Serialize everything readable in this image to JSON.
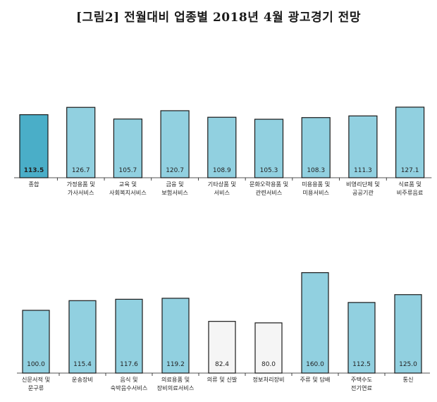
{
  "title": "[그림2] 전월대비 업종별 2018년 4월 광고경기 전망",
  "colors": {
    "highlight": "#4AAEC8",
    "bar": "#91D0E0",
    "low": "#F5F5F5",
    "border": "#1a1a1a"
  },
  "chart_data": [
    {
      "type": "bar",
      "categories": [
        [
          "종합"
        ],
        [
          "가정용품 및",
          "가사서비스"
        ],
        [
          "교육 및",
          "사회복지서비스"
        ],
        [
          "금융 및",
          "보험서비스"
        ],
        [
          "기타상품 및",
          "서비스"
        ],
        [
          "문화오락용품 및",
          "관련서비스"
        ],
        [
          "미용용품 및",
          "미용서비스"
        ],
        [
          "비영리단체 및",
          "공공기관"
        ],
        [
          "식료품 및",
          "비주류음료"
        ]
      ],
      "values": [
        113.5,
        126.7,
        105.7,
        120.7,
        108.9,
        105.3,
        108.3,
        111.3,
        127.1
      ],
      "value_labels": [
        "113.5",
        "126.7",
        "105.7",
        "120.7",
        "108.9",
        "105.3",
        "108.3",
        "111.3",
        "127.1"
      ],
      "ylim": [
        0,
        160
      ],
      "highlight_index": 0
    },
    {
      "type": "bar",
      "categories": [
        [
          "신문서적 및",
          "문구류"
        ],
        [
          "운송장비"
        ],
        [
          "음식 및",
          "숙박음수서비스"
        ],
        [
          "의료용품 및",
          "장비의료서비스"
        ],
        [
          "의류 및 신발"
        ],
        [
          "정보처리장비"
        ],
        [
          "주류 및 담배"
        ],
        [
          "주택수도",
          "전기연료"
        ],
        [
          "통신"
        ]
      ],
      "values": [
        100.0,
        115.4,
        117.6,
        119.2,
        82.4,
        80.0,
        160.0,
        112.5,
        125.0
      ],
      "value_labels": [
        "100.0",
        "115.4",
        "117.6",
        "119.2",
        "82.4",
        "80.0",
        "160.0",
        "112.5",
        "125.0"
      ],
      "ylim": [
        0,
        200
      ],
      "low_threshold": 100
    }
  ]
}
